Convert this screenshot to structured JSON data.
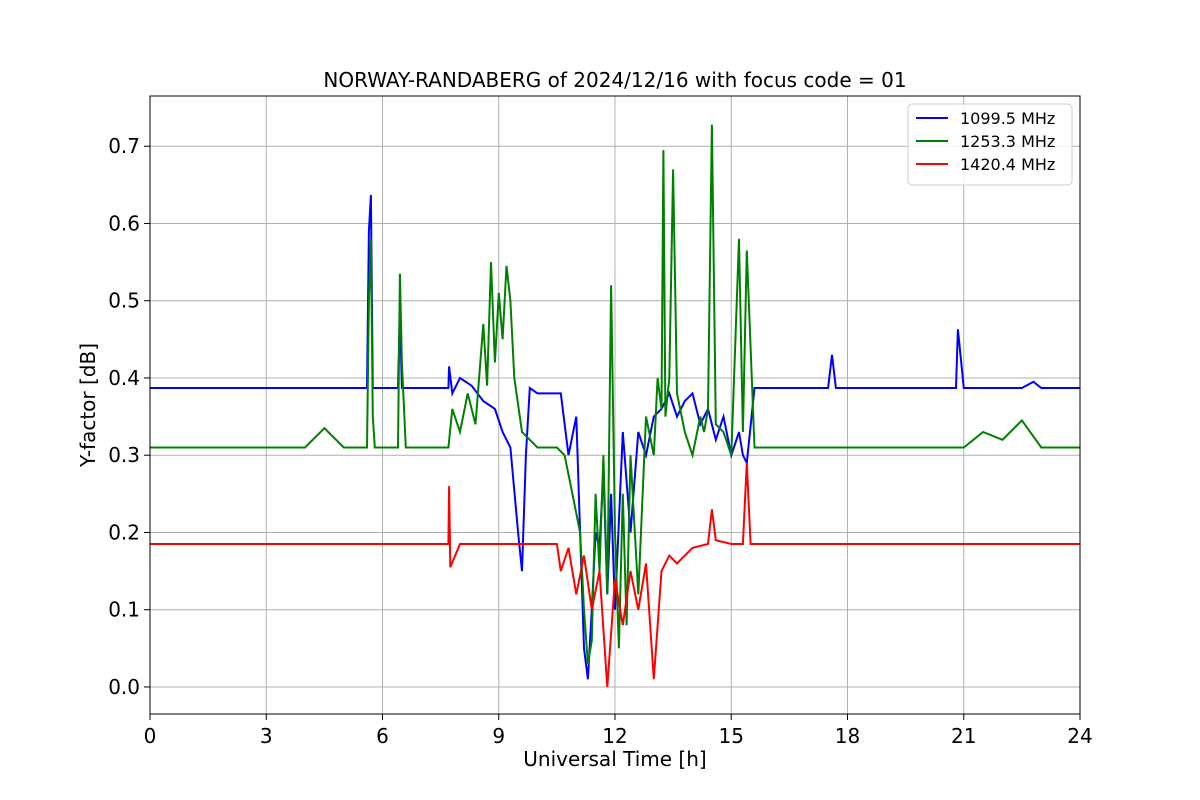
{
  "chart_data": {
    "type": "line",
    "title": "NORWAY-RANDABERG of 2024/12/16 with focus code = 01",
    "xlabel": "Universal Time [h]",
    "ylabel": "Y-factor [dB]",
    "xlim": [
      0,
      24
    ],
    "ylim": [
      -0.035,
      0.765
    ],
    "xticks": [
      0,
      3,
      6,
      9,
      12,
      15,
      18,
      21,
      24
    ],
    "yticks": [
      0.0,
      0.1,
      0.2,
      0.3,
      0.4,
      0.5,
      0.6,
      0.7
    ],
    "ytick_labels": [
      "0.0",
      "0.1",
      "0.2",
      "0.3",
      "0.4",
      "0.5",
      "0.6",
      "0.7"
    ],
    "grid": true,
    "legend_position": "top-right",
    "series": [
      {
        "name": "1099.5 MHz",
        "color": "#0000ff",
        "x": [
          0,
          0.5,
          1.0,
          2.0,
          3.0,
          4.0,
          5.0,
          5.6,
          5.65,
          5.7,
          5.75,
          5.8,
          6.0,
          6.4,
          6.45,
          6.5,
          6.6,
          7.0,
          7.5,
          7.7,
          7.72,
          7.8,
          8.0,
          8.3,
          8.6,
          8.9,
          9.1,
          9.3,
          9.5,
          9.6,
          9.7,
          9.8,
          10.0,
          10.3,
          10.6,
          10.8,
          11.0,
          11.1,
          11.2,
          11.3,
          11.4,
          11.5,
          11.6,
          11.7,
          11.8,
          11.9,
          12.0,
          12.2,
          12.4,
          12.6,
          12.8,
          13.0,
          13.2,
          13.4,
          13.6,
          13.8,
          14.0,
          14.2,
          14.4,
          14.6,
          14.8,
          15.0,
          15.2,
          15.3,
          15.4,
          15.6,
          16.0,
          16.5,
          17.0,
          17.5,
          17.6,
          17.7,
          18.0,
          18.5,
          19.0,
          19.5,
          20.0,
          20.5,
          20.8,
          20.85,
          21.0,
          21.5,
          22.0,
          22.5,
          22.8,
          23.0,
          23.5,
          24.0
        ],
        "values": [
          0.387,
          0.387,
          0.387,
          0.387,
          0.387,
          0.387,
          0.387,
          0.387,
          0.59,
          0.637,
          0.387,
          0.387,
          0.387,
          0.387,
          0.49,
          0.387,
          0.387,
          0.387,
          0.387,
          0.387,
          0.415,
          0.38,
          0.4,
          0.39,
          0.37,
          0.36,
          0.33,
          0.31,
          0.2,
          0.15,
          0.3,
          0.387,
          0.38,
          0.38,
          0.38,
          0.3,
          0.35,
          0.2,
          0.05,
          0.01,
          0.1,
          0.2,
          0.18,
          0.28,
          0.12,
          0.25,
          0.1,
          0.33,
          0.2,
          0.33,
          0.3,
          0.35,
          0.36,
          0.38,
          0.35,
          0.37,
          0.38,
          0.34,
          0.36,
          0.32,
          0.35,
          0.3,
          0.33,
          0.3,
          0.29,
          0.387,
          0.387,
          0.387,
          0.387,
          0.387,
          0.43,
          0.387,
          0.387,
          0.387,
          0.387,
          0.387,
          0.387,
          0.387,
          0.387,
          0.463,
          0.387,
          0.387,
          0.387,
          0.387,
          0.395,
          0.387,
          0.387,
          0.387
        ]
      },
      {
        "name": "1253.3 MHz",
        "color": "#008000",
        "x": [
          0,
          0.5,
          1.0,
          2.0,
          3.0,
          4.0,
          4.5,
          5.0,
          5.6,
          5.65,
          5.7,
          5.75,
          5.8,
          6.0,
          6.4,
          6.45,
          6.5,
          6.6,
          7.0,
          7.5,
          7.7,
          7.8,
          8.0,
          8.2,
          8.4,
          8.6,
          8.7,
          8.8,
          8.9,
          9.0,
          9.1,
          9.2,
          9.3,
          9.4,
          9.6,
          9.8,
          10.0,
          10.5,
          10.7,
          10.9,
          11.1,
          11.2,
          11.3,
          11.4,
          11.5,
          11.6,
          11.7,
          11.8,
          11.9,
          12.0,
          12.1,
          12.2,
          12.3,
          12.4,
          12.6,
          12.8,
          13.0,
          13.1,
          13.2,
          13.25,
          13.3,
          13.4,
          13.5,
          13.6,
          13.8,
          14.0,
          14.2,
          14.3,
          14.4,
          14.5,
          14.6,
          14.8,
          15.0,
          15.2,
          15.3,
          15.4,
          15.6,
          16.0,
          17.0,
          18.0,
          19.0,
          20.0,
          21.0,
          21.5,
          22.0,
          22.5,
          23.0,
          24.0
        ],
        "values": [
          0.31,
          0.31,
          0.31,
          0.31,
          0.31,
          0.31,
          0.335,
          0.31,
          0.31,
          0.5,
          0.58,
          0.35,
          0.31,
          0.31,
          0.31,
          0.535,
          0.42,
          0.31,
          0.31,
          0.31,
          0.31,
          0.36,
          0.33,
          0.38,
          0.34,
          0.47,
          0.39,
          0.55,
          0.42,
          0.51,
          0.45,
          0.545,
          0.5,
          0.4,
          0.33,
          0.32,
          0.31,
          0.31,
          0.3,
          0.25,
          0.2,
          0.1,
          0.03,
          0.06,
          0.25,
          0.15,
          0.3,
          0.12,
          0.52,
          0.2,
          0.05,
          0.25,
          0.08,
          0.3,
          0.12,
          0.35,
          0.3,
          0.4,
          0.36,
          0.695,
          0.35,
          0.4,
          0.67,
          0.38,
          0.33,
          0.3,
          0.35,
          0.33,
          0.36,
          0.728,
          0.34,
          0.33,
          0.3,
          0.58,
          0.33,
          0.565,
          0.31,
          0.31,
          0.31,
          0.31,
          0.31,
          0.31,
          0.31,
          0.33,
          0.32,
          0.345,
          0.31,
          0.31
        ]
      },
      {
        "name": "1420.4 MHz",
        "color": "#ff0000",
        "x": [
          0,
          0.5,
          1.0,
          2.0,
          3.0,
          4.0,
          5.0,
          6.0,
          6.5,
          7.0,
          7.5,
          7.7,
          7.72,
          7.75,
          8.0,
          8.5,
          9.0,
          9.5,
          10.0,
          10.5,
          10.6,
          10.8,
          11.0,
          11.2,
          11.4,
          11.6,
          11.8,
          12.0,
          12.2,
          12.4,
          12.6,
          12.8,
          13.0,
          13.2,
          13.4,
          13.6,
          14.0,
          14.4,
          14.5,
          14.6,
          15.0,
          15.3,
          15.4,
          15.5,
          16.0,
          17.0,
          18.0,
          19.0,
          20.0,
          21.0,
          22.0,
          23.0,
          24.0
        ],
        "values": [
          0.185,
          0.185,
          0.185,
          0.185,
          0.185,
          0.185,
          0.185,
          0.185,
          0.185,
          0.185,
          0.185,
          0.185,
          0.26,
          0.155,
          0.185,
          0.185,
          0.185,
          0.185,
          0.185,
          0.185,
          0.15,
          0.18,
          0.12,
          0.17,
          0.1,
          0.15,
          0.0,
          0.14,
          0.08,
          0.15,
          0.1,
          0.16,
          0.01,
          0.15,
          0.17,
          0.16,
          0.18,
          0.185,
          0.23,
          0.19,
          0.185,
          0.185,
          0.29,
          0.185,
          0.185,
          0.185,
          0.185,
          0.185,
          0.185,
          0.185,
          0.185,
          0.185,
          0.185
        ]
      }
    ]
  }
}
